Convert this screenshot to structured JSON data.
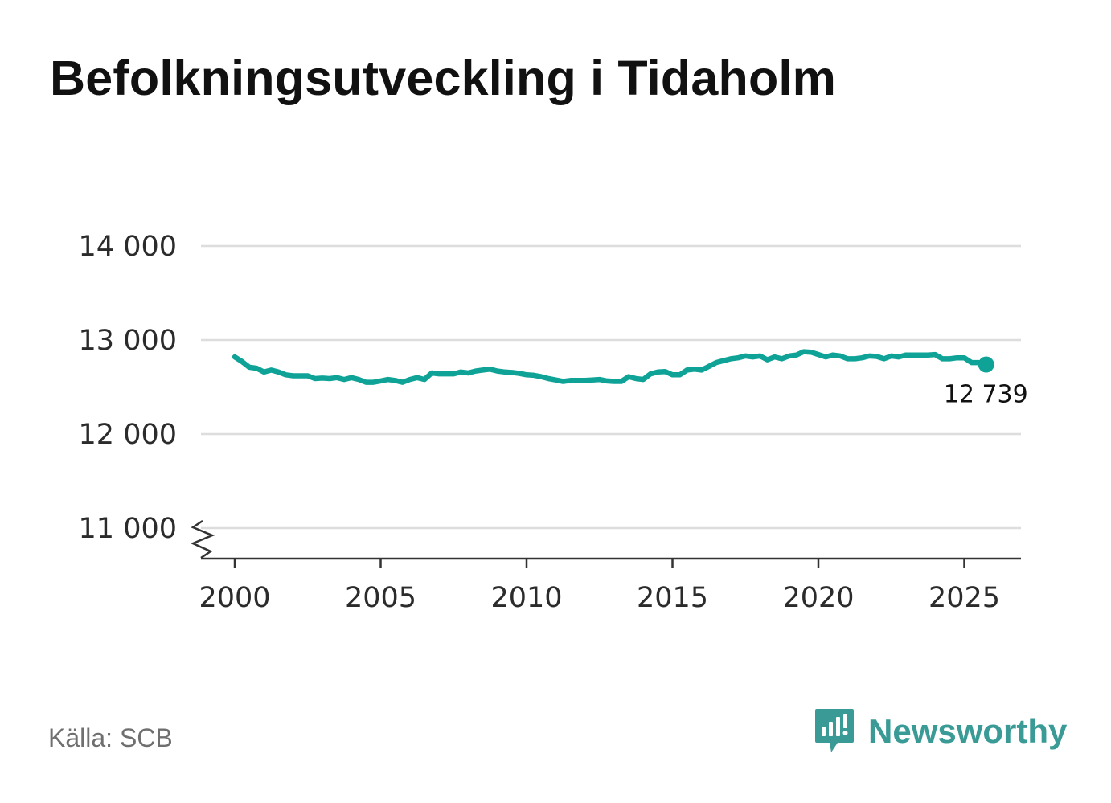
{
  "title": "Befolkningsutveckling i Tidaholm",
  "source": "Källa: SCB",
  "brand": {
    "name": "Newsworthy",
    "logo_icon": "newsworthy-logo-icon",
    "color": "#3a9b96"
  },
  "colors": {
    "line": "#0fa398",
    "grid": "#dddddd",
    "axis": "#333333"
  },
  "chart_data": {
    "type": "line",
    "title": "Befolkningsutveckling i Tidaholm",
    "xlabel": "",
    "ylabel": "",
    "xlim": [
      1999,
      2027
    ],
    "ylim": [
      10680,
      14000
    ],
    "y_ticks": [
      11000,
      12000,
      13000,
      14000
    ],
    "y_tick_labels": [
      "11 000",
      "12 000",
      "13 000",
      "14 000"
    ],
    "x_ticks": [
      2000,
      2005,
      2010,
      2015,
      2020,
      2025
    ],
    "x_tick_labels": [
      "2000",
      "2005",
      "2010",
      "2015",
      "2020",
      "2025"
    ],
    "axis_break": true,
    "grid": true,
    "legend": "none",
    "end_label": "12 739",
    "series": [
      {
        "x": [
          2000.0,
          2000.25,
          2000.5,
          2000.75,
          2001.0,
          2001.25,
          2001.5,
          2001.75,
          2002.0,
          2002.25,
          2002.5,
          2002.75,
          2003.0,
          2003.25,
          2003.5,
          2003.75,
          2004.0,
          2004.25,
          2004.5,
          2004.75,
          2005.0,
          2005.25,
          2005.5,
          2005.75,
          2006.0,
          2006.25,
          2006.5,
          2006.75,
          2007.0,
          2007.25,
          2007.5,
          2007.75,
          2008.0,
          2008.25,
          2008.5,
          2008.75,
          2009.0,
          2009.25,
          2009.5,
          2009.75,
          2010.0,
          2010.25,
          2010.5,
          2010.75,
          2011.0,
          2011.25,
          2011.5,
          2011.75,
          2012.0,
          2012.25,
          2012.5,
          2012.75,
          2013.0,
          2013.25,
          2013.5,
          2013.75,
          2014.0,
          2014.25,
          2014.5,
          2014.75,
          2015.0,
          2015.25,
          2015.5,
          2015.75,
          2016.0,
          2016.25,
          2016.5,
          2016.75,
          2017.0,
          2017.25,
          2017.5,
          2017.75,
          2018.0,
          2018.25,
          2018.5,
          2018.75,
          2019.0,
          2019.25,
          2019.5,
          2019.75,
          2020.0,
          2020.25,
          2020.5,
          2020.75,
          2021.0,
          2021.25,
          2021.5,
          2021.75,
          2022.0,
          2022.25,
          2022.5,
          2022.75,
          2023.0,
          2023.25,
          2023.5,
          2023.75,
          2024.0,
          2024.25,
          2024.5,
          2024.75,
          2025.0,
          2025.25,
          2025.5,
          2025.75
        ],
        "values": [
          12820,
          12770,
          12710,
          12700,
          12660,
          12680,
          12660,
          12630,
          12620,
          12620,
          12620,
          12590,
          12595,
          12590,
          12600,
          12580,
          12600,
          12580,
          12550,
          12550,
          12565,
          12580,
          12570,
          12550,
          12580,
          12600,
          12580,
          12650,
          12640,
          12640,
          12640,
          12660,
          12650,
          12670,
          12680,
          12690,
          12670,
          12660,
          12655,
          12645,
          12630,
          12625,
          12610,
          12590,
          12575,
          12560,
          12570,
          12570,
          12570,
          12575,
          12580,
          12565,
          12560,
          12560,
          12610,
          12590,
          12580,
          12640,
          12660,
          12665,
          12630,
          12630,
          12680,
          12690,
          12680,
          12720,
          12760,
          12780,
          12800,
          12810,
          12830,
          12820,
          12830,
          12790,
          12820,
          12800,
          12830,
          12840,
          12875,
          12870,
          12845,
          12820,
          12840,
          12830,
          12800,
          12800,
          12810,
          12830,
          12825,
          12800,
          12830,
          12820,
          12840,
          12840,
          12840,
          12840,
          12845,
          12800,
          12800,
          12810,
          12810,
          12760,
          12760,
          12739
        ]
      }
    ]
  }
}
